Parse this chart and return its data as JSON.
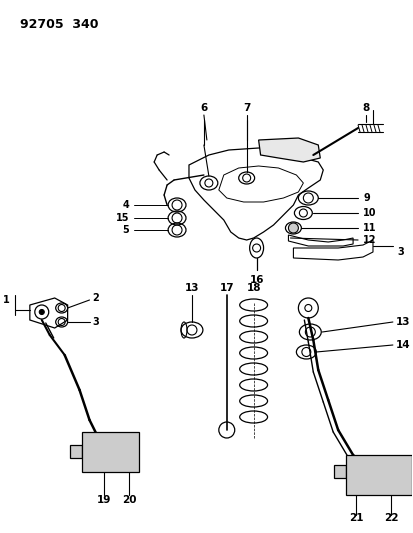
{
  "title": "92705  340",
  "bg": "#ffffff",
  "lc": "#000000",
  "figsize": [
    4.14,
    5.33
  ],
  "dpi": 100
}
